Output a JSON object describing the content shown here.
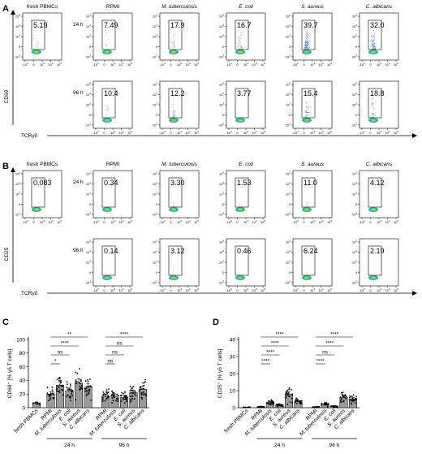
{
  "panels": {
    "A": {
      "letter": "A",
      "y_axis_label": "CD69",
      "x_axis_label": "TCRγδ",
      "columns": [
        "fresh PBMCs",
        "RPMI",
        "M. tuberculosis",
        "E. coli",
        "S. aureus",
        "C. albicans"
      ],
      "rows": [
        {
          "label": "24 h",
          "values": [
            "5.19",
            "7.49",
            "17.9",
            "16.7",
            "39.7",
            "32.0"
          ]
        },
        {
          "label": "96 h",
          "values": [
            null,
            "10.4",
            "12.2",
            "3.77",
            "15.4",
            "18.8"
          ]
        }
      ]
    },
    "B": {
      "letter": "B",
      "y_axis_label": "CD25",
      "x_axis_label": "TCRγδ",
      "columns": [
        "fresh PBMCs",
        "RPMI",
        "M. tuberculosis",
        "E. coli",
        "S. aureus",
        "C. albicans"
      ],
      "rows": [
        {
          "label": "24 h",
          "values": [
            "0.083",
            "0.34",
            "3.30",
            "1.53",
            "11.0",
            "4.12"
          ]
        },
        {
          "label": "96 h",
          "values": [
            null,
            "0.14",
            "3.12",
            "0.46",
            "6.24",
            "2.19"
          ]
        }
      ]
    }
  },
  "flow_ticks": {
    "y": [
      "10^5",
      "10^4",
      "10^3",
      "0",
      "-10^3"
    ],
    "x": [
      "-10^3",
      "0",
      "10^3",
      "10^4",
      "10^5"
    ]
  },
  "chart_data": [
    {
      "type": "bar",
      "panel": "C",
      "ylabel": "CD69⁺ [% γδ T cells]",
      "ylim": [
        0,
        100
      ],
      "yticks": [
        0,
        20,
        40,
        60,
        80,
        100
      ],
      "categories": [
        "fresh PBMCs",
        "RPMI",
        "M. tuberculosis",
        "E. coli",
        "S. aureus",
        "C. albicans",
        "RPMI",
        "M. tuberculosis",
        "E. coli",
        "S. aureus",
        "C. albicans"
      ],
      "values": [
        7,
        20,
        33,
        25,
        36,
        30,
        17,
        17,
        15,
        22,
        27
      ],
      "groups": [
        {
          "label": "24 h",
          "from": 1,
          "to": 5
        },
        {
          "label": "96 h",
          "from": 6,
          "to": 10
        }
      ],
      "significance": [
        {
          "from": 1,
          "to": 2,
          "label": "*"
        },
        {
          "from": 1,
          "to": 3,
          "label": "ns"
        },
        {
          "from": 1,
          "to": 4,
          "label": "****"
        },
        {
          "from": 1,
          "to": 5,
          "label": "**"
        },
        {
          "from": 6,
          "to": 7,
          "label": "ns"
        },
        {
          "from": 6,
          "to": 8,
          "label": "ns"
        },
        {
          "from": 6,
          "to": 9,
          "label": "ns"
        },
        {
          "from": 6,
          "to": 10,
          "label": "****"
        }
      ]
    },
    {
      "type": "bar",
      "panel": "D",
      "ylabel": "CD25⁺ [% γδ T cells]",
      "ylim": [
        0,
        40
      ],
      "yticks": [
        0,
        10,
        20,
        30,
        40
      ],
      "categories": [
        "fresh PBMCs",
        "RPMI",
        "M. tuberculosis",
        "E. coli",
        "S. aureus",
        "C. albicans",
        "RPMI",
        "M. tuberculosis",
        "E. coli",
        "S. aureus",
        "C. albicans"
      ],
      "values": [
        0.3,
        0.5,
        3,
        1.5,
        8,
        3.5,
        0.4,
        2,
        0.7,
        6,
        5
      ],
      "groups": [
        {
          "label": "24 h",
          "from": 1,
          "to": 5
        },
        {
          "label": "96 h",
          "from": 6,
          "to": 10
        }
      ],
      "significance": [
        {
          "from": 1,
          "to": 2,
          "label": "****"
        },
        {
          "from": 1,
          "to": 3,
          "label": "****"
        },
        {
          "from": 1,
          "to": 4,
          "label": "****"
        },
        {
          "from": 1,
          "to": 5,
          "label": "****"
        },
        {
          "from": 6,
          "to": 7,
          "label": "****"
        },
        {
          "from": 6,
          "to": 8,
          "label": "ns"
        },
        {
          "from": 6,
          "to": 9,
          "label": "****"
        },
        {
          "from": 6,
          "to": 10,
          "label": "****"
        }
      ]
    }
  ],
  "panel_letters": {
    "C": "C",
    "D": "D"
  }
}
